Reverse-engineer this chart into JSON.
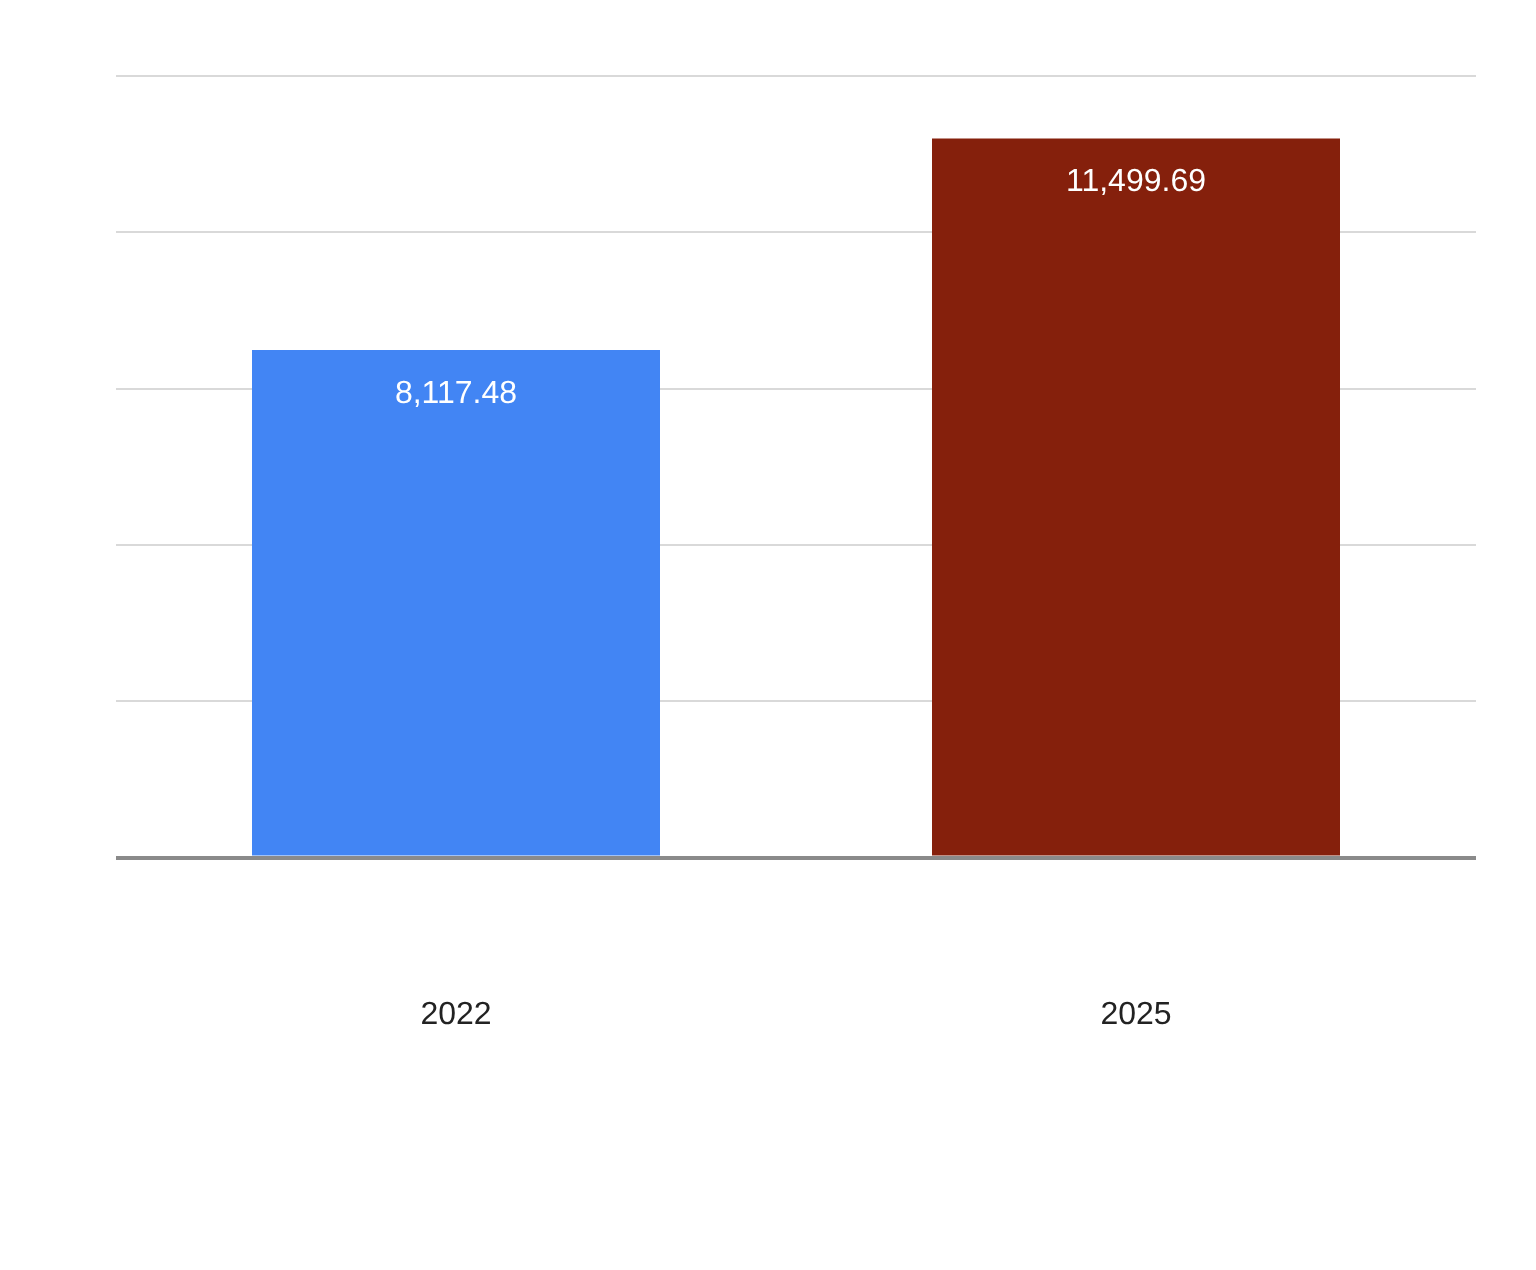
{
  "chart_data": {
    "type": "bar",
    "categories": [
      "2022",
      "2025"
    ],
    "values": [
      8117.48,
      11499.69
    ],
    "colors": [
      "#4285f4",
      "#85200c"
    ],
    "value_labels": [
      "8,117.48",
      "11,499.69"
    ],
    "ylim": [
      0,
      12500
    ],
    "yticks": [
      {
        "value": 0,
        "label": null
      },
      {
        "value": 2500,
        "label": null
      },
      {
        "value": 5000,
        "label": null
      },
      {
        "value": 7500,
        "label": null
      },
      {
        "value": 10000,
        "label": null
      },
      {
        "value": 12500,
        "label": null
      }
    ],
    "grid": "y",
    "tick_labels": "x"
  }
}
